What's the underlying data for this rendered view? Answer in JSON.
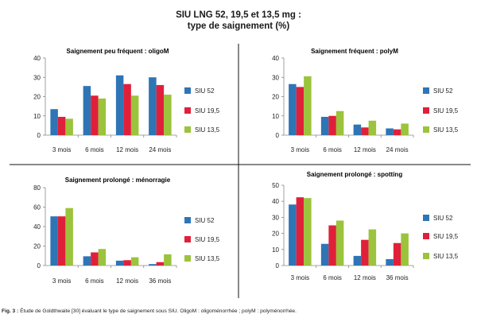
{
  "figure": {
    "title_line1": "SIU LNG 52, 19,5 et 13,5 mg :",
    "title_line2": "type de saignement (%)",
    "caption_label": "Fig. 3 :",
    "caption_text": "Étude de Goldthwaite [30] évaluant le type de saignement sous SIU. OligoM : oligoménorrhée ; polyM : polyménorrhée."
  },
  "colors": {
    "SIU 52": "#2e75b6",
    "SIU 19,5": "#e0203a",
    "SIU 13,5": "#9bc33b"
  },
  "chart_data": [
    {
      "type": "bar",
      "title": "Saignement peu fréquent : oligoM",
      "categories": [
        "3 mois",
        "6 mois",
        "12 mois",
        "24 mois"
      ],
      "ylim": [
        0,
        40
      ],
      "yticks": [
        0,
        10,
        20,
        30,
        40
      ],
      "grid": false,
      "legend": "right",
      "series": [
        {
          "name": "SIU 52",
          "values": [
            13.5,
            25.5,
            31,
            30
          ]
        },
        {
          "name": "SIU 19,5",
          "values": [
            9.5,
            20.5,
            26.5,
            26
          ]
        },
        {
          "name": "SIU 13,5",
          "values": [
            8.5,
            19,
            20.5,
            21
          ]
        }
      ]
    },
    {
      "type": "bar",
      "title": "Saignement fréquent : polyM",
      "categories": [
        "3 mois",
        "6 mois",
        "12 mois",
        "24 mois"
      ],
      "ylim": [
        0,
        40
      ],
      "yticks": [
        0,
        10,
        20,
        30,
        40
      ],
      "grid": false,
      "legend": "right",
      "series": [
        {
          "name": "SIU 52",
          "values": [
            26.5,
            9.5,
            5.5,
            3.5
          ]
        },
        {
          "name": "SIU 19,5",
          "values": [
            25,
            10,
            4,
            3
          ]
        },
        {
          "name": "SIU 13,5",
          "values": [
            30.5,
            12.5,
            7.5,
            6
          ]
        }
      ]
    },
    {
      "type": "bar",
      "title": "Saignement prolongé : ménorragie",
      "categories": [
        "3 mois",
        "6 mois",
        "12 mois",
        "36 mois"
      ],
      "ylim": [
        0,
        80
      ],
      "yticks": [
        0,
        20,
        40,
        60,
        80
      ],
      "grid": false,
      "legend": "right",
      "series": [
        {
          "name": "SIU 52",
          "values": [
            50.5,
            9.5,
            5,
            1.5
          ]
        },
        {
          "name": "SIU 19,5",
          "values": [
            50.5,
            13.5,
            5.5,
            3.5
          ]
        },
        {
          "name": "SIU 13,5",
          "values": [
            59,
            17,
            8.5,
            11.5
          ]
        }
      ]
    },
    {
      "type": "bar",
      "title": "Saignement prolongé : spotting",
      "categories": [
        "3 mois",
        "6 mois",
        "12 mois",
        "36 mois"
      ],
      "ylim": [
        0,
        50
      ],
      "yticks": [
        0,
        10,
        20,
        30,
        40,
        50
      ],
      "grid": false,
      "legend": "right",
      "series": [
        {
          "name": "SIU 52",
          "values": [
            38,
            13.5,
            6,
            4
          ]
        },
        {
          "name": "SIU 19,5",
          "values": [
            42.5,
            25,
            16,
            14
          ]
        },
        {
          "name": "SIU 13,5",
          "values": [
            42,
            28,
            22.5,
            20
          ]
        }
      ]
    }
  ]
}
